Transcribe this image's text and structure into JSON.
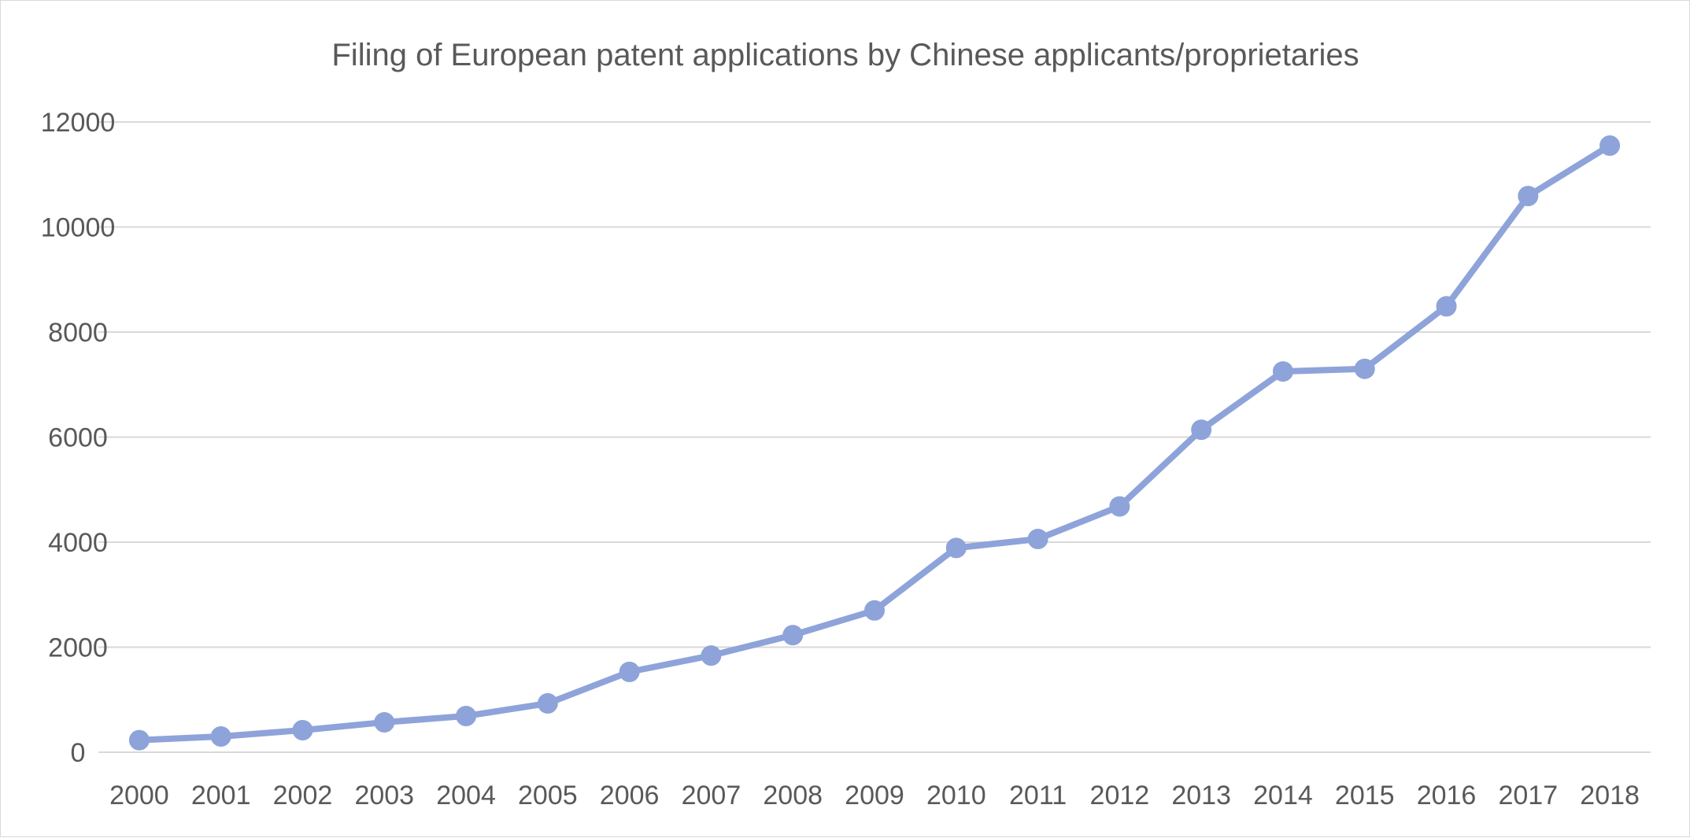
{
  "chart_data": {
    "type": "line",
    "title": "Filing of European patent applications by Chinese applicants/proprietaries",
    "xlabel": "",
    "ylabel": "",
    "ylim": [
      0,
      12000
    ],
    "yticks": [
      0,
      2000,
      4000,
      6000,
      8000,
      10000,
      12000
    ],
    "grid": true,
    "legend": "none",
    "categories": [
      "2000",
      "2001",
      "2002",
      "2003",
      "2004",
      "2005",
      "2006",
      "2007",
      "2008",
      "2009",
      "2010",
      "2011",
      "2012",
      "2013",
      "2014",
      "2015",
      "2016",
      "2017",
      "2018"
    ],
    "series": [
      {
        "name": "Filing of European patent applications by Chinese applicants/proprietaries",
        "color": "#8ea3d9",
        "values": [
          230,
          300,
          420,
          570,
          690,
          930,
          1530,
          1840,
          2230,
          2700,
          3890,
          4060,
          4680,
          6140,
          7250,
          7300,
          8490,
          10590,
          11550
        ]
      }
    ]
  }
}
